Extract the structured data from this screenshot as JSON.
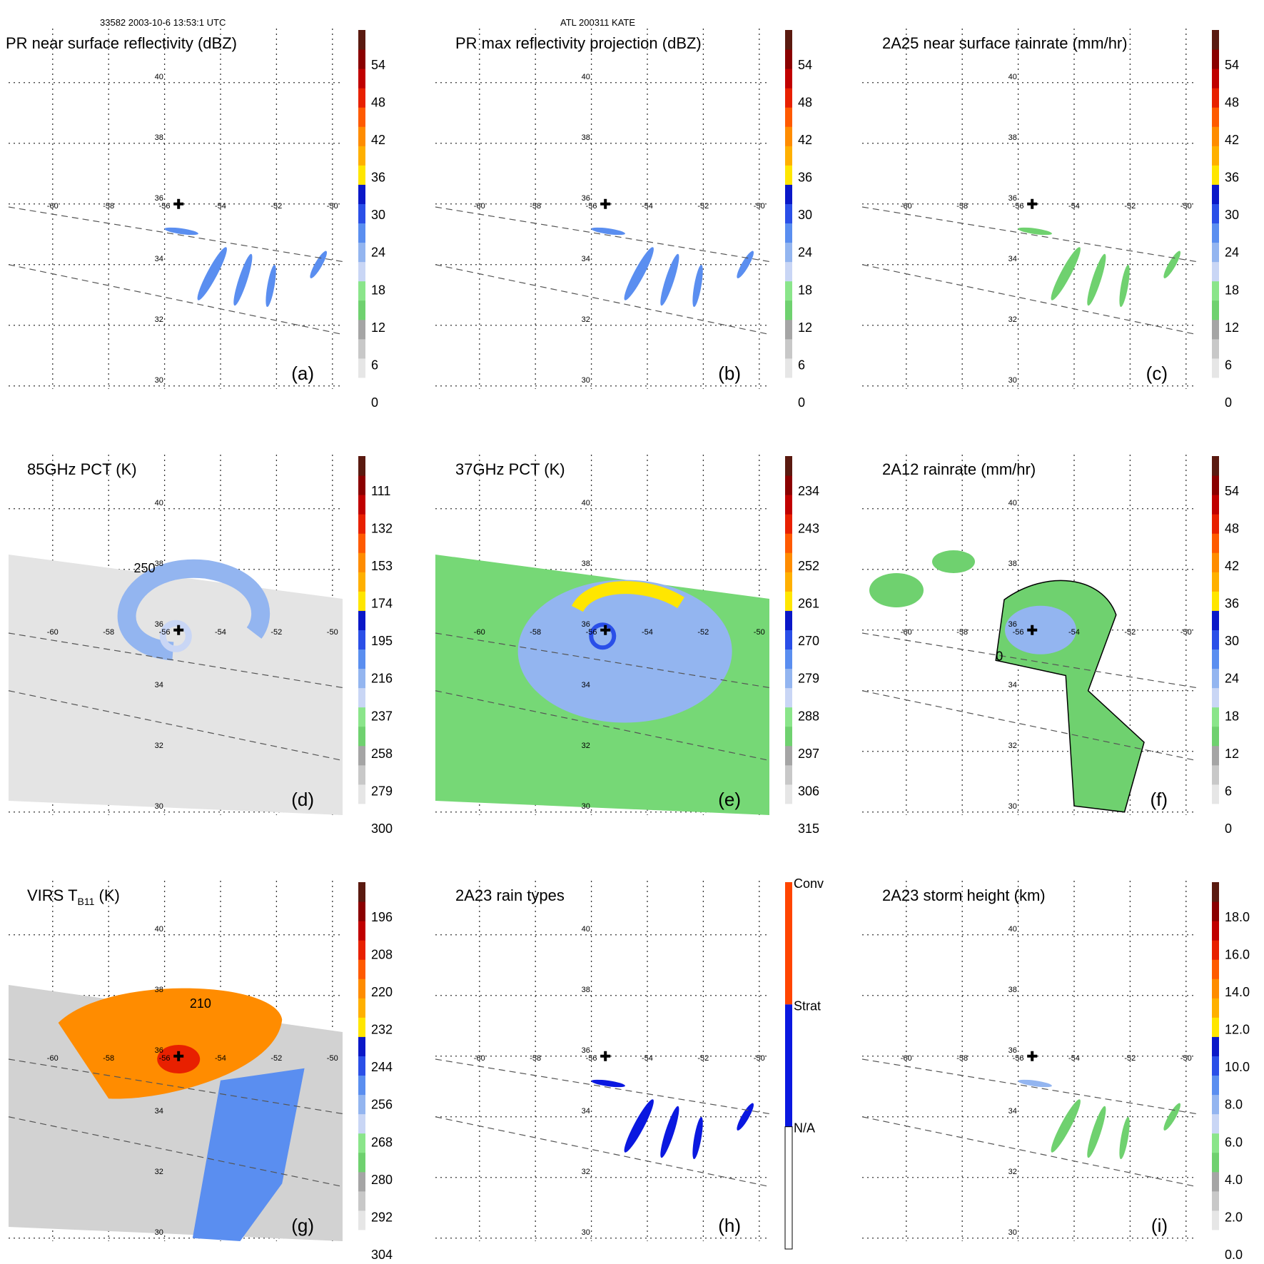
{
  "header": {
    "left": "33582 2003-10-6 13:53:1 UTC",
    "center": "ATL 200311 KATE"
  },
  "axes": {
    "lat_labels": [
      "40",
      "38",
      "36",
      "34",
      "32",
      "30"
    ],
    "lon_labels": [
      "-60",
      "-58",
      "-56",
      "-54",
      "-52",
      "-50"
    ]
  },
  "colors": {
    "scale": [
      "#ffffff",
      "#e6e6e6",
      "#c8c8c8",
      "#a5a5a5",
      "#6fd16f",
      "#8ae58a",
      "#c9d6f5",
      "#93b5f0",
      "#5a8ef0",
      "#2a4fe8",
      "#0a18c8",
      "#ffe600",
      "#ffb000",
      "#ff8c00",
      "#ff5a00",
      "#e82000",
      "#c00000",
      "#8a0000",
      "#5a1a10"
    ],
    "rain_type": {
      "conv": "#ff4500",
      "strat": "#0a18e0",
      "na": "#ffffff"
    }
  },
  "panels": [
    {
      "id": "a",
      "title": "PR near surface reflectivity (dBZ)",
      "label": "(a)",
      "cb_labels": [
        "54",
        "48",
        "42",
        "36",
        "30",
        "24",
        "18",
        "12",
        "6",
        "0"
      ]
    },
    {
      "id": "b",
      "title": "PR max reflectivity projection (dBZ)",
      "label": "(b)",
      "cb_labels": [
        "54",
        "48",
        "42",
        "36",
        "30",
        "24",
        "18",
        "12",
        "6",
        "0"
      ]
    },
    {
      "id": "c",
      "title": "2A25 near surface rainrate (mm/hr)",
      "label": "(c)",
      "cb_labels": [
        "54",
        "48",
        "42",
        "36",
        "30",
        "24",
        "18",
        "12",
        "6",
        "0"
      ]
    },
    {
      "id": "d",
      "title": "85GHz PCT (K)",
      "label": "(d)",
      "contour_label": "250",
      "cb_labels": [
        "111",
        "132",
        "153",
        "174",
        "195",
        "216",
        "237",
        "258",
        "279",
        "300"
      ]
    },
    {
      "id": "e",
      "title": "37GHz PCT (K)",
      "label": "(e)",
      "cb_labels": [
        "234",
        "243",
        "252",
        "261",
        "270",
        "279",
        "288",
        "297",
        "306",
        "315"
      ]
    },
    {
      "id": "f",
      "title": "2A12 rainrate (mm/hr)",
      "label": "(f)",
      "contour_label": "0",
      "cb_labels": [
        "54",
        "48",
        "42",
        "36",
        "30",
        "24",
        "18",
        "12",
        "6",
        "0"
      ]
    },
    {
      "id": "g",
      "title_main": "VIRS T",
      "title_sub": "B11",
      "title_end": " (K)",
      "label": "(g)",
      "contour_label": "210",
      "cb_labels": [
        "196",
        "208",
        "220",
        "232",
        "244",
        "256",
        "268",
        "280",
        "292",
        "304"
      ]
    },
    {
      "id": "h",
      "title": "2A23 rain types",
      "label": "(h)",
      "cb_labels": [
        "Conv",
        "Strat",
        "N/A"
      ]
    },
    {
      "id": "i",
      "title": "2A23 storm height (km)",
      "label": "(i)",
      "cb_labels": [
        "18.0",
        "16.0",
        "14.0",
        "12.0",
        "10.0",
        "8.0",
        "6.0",
        "4.0",
        "2.0",
        "0.0"
      ]
    }
  ]
}
